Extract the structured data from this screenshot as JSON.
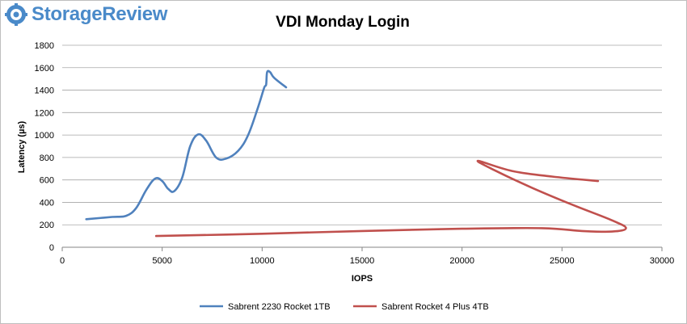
{
  "branding": {
    "logo_text": "StorageReview",
    "logo_icon": "storagereview-gear-icon",
    "logo_color": "#4a8ac9"
  },
  "chart_data": {
    "type": "line",
    "title": "VDI Monday Login",
    "xlabel": "IOPS",
    "ylabel": "Latency (µs)",
    "xlim": [
      0,
      30000
    ],
    "ylim": [
      0,
      1800
    ],
    "xticks": [
      0,
      5000,
      10000,
      15000,
      20000,
      25000,
      30000
    ],
    "yticks": [
      0,
      200,
      400,
      600,
      800,
      1000,
      1200,
      1400,
      1600,
      1800
    ],
    "grid": "horizontal",
    "legend_position": "bottom",
    "series": [
      {
        "name": "Sabrent 2230 Rocket 1TB",
        "color": "#4f81bd",
        "points": [
          [
            1200,
            250
          ],
          [
            2500,
            270
          ],
          [
            3200,
            280
          ],
          [
            3700,
            350
          ],
          [
            4200,
            510
          ],
          [
            4650,
            612
          ],
          [
            5000,
            590
          ],
          [
            5300,
            520
          ],
          [
            5600,
            500
          ],
          [
            6000,
            620
          ],
          [
            6400,
            900
          ],
          [
            6800,
            1005
          ],
          [
            7200,
            950
          ],
          [
            7700,
            800
          ],
          [
            8200,
            790
          ],
          [
            8800,
            860
          ],
          [
            9300,
            1000
          ],
          [
            9800,
            1250
          ],
          [
            10100,
            1420
          ],
          [
            10200,
            1450
          ],
          [
            10250,
            1560
          ],
          [
            10400,
            1560
          ],
          [
            10600,
            1510
          ],
          [
            11200,
            1425
          ]
        ]
      },
      {
        "name": "Sabrent Rocket 4 Plus 4TB",
        "color": "#c0504d",
        "points": [
          [
            4700,
            100
          ],
          [
            10000,
            120
          ],
          [
            15000,
            145
          ],
          [
            20000,
            165
          ],
          [
            24000,
            170
          ],
          [
            26000,
            145
          ],
          [
            27500,
            140
          ],
          [
            28200,
            170
          ],
          [
            27500,
            240
          ],
          [
            25500,
            380
          ],
          [
            23500,
            530
          ],
          [
            21700,
            680
          ],
          [
            20800,
            770
          ],
          [
            22500,
            680
          ],
          [
            24500,
            630
          ],
          [
            26800,
            590
          ]
        ]
      }
    ]
  }
}
